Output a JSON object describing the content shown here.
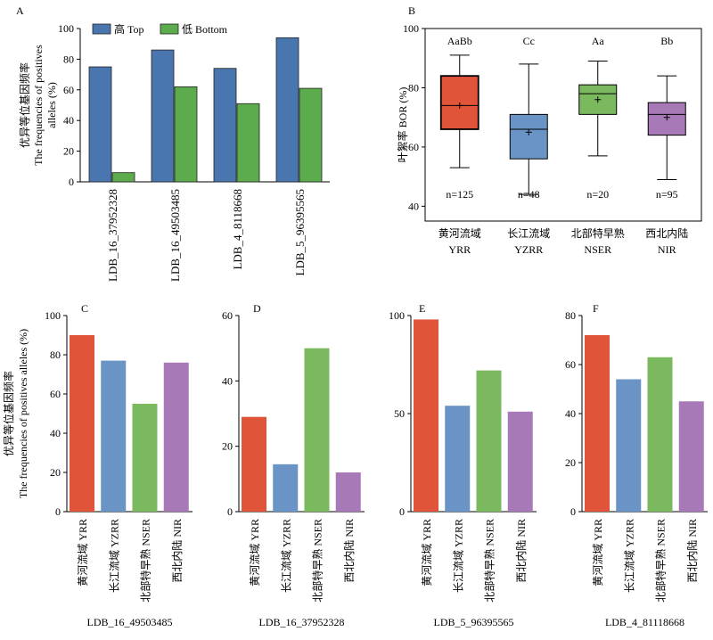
{
  "chart_data": [
    {
      "panel": "A",
      "type": "bar",
      "ylabel": [
        "优异等位基因频率",
        "The frequencies of positives",
        "alleles (%)"
      ],
      "categories": [
        "LDB_16_37952328",
        "LDB_16_49503485",
        "LDB_4_8118668",
        "LDB_5_96395565"
      ],
      "series": [
        {
          "name": "高 Top",
          "color": "#4a76b0",
          "values": [
            75,
            86,
            74,
            94
          ]
        },
        {
          "name": "低 Bottom",
          "color": "#5cab4c",
          "values": [
            6,
            62,
            51,
            61
          ]
        }
      ],
      "ylim": [
        0,
        100
      ],
      "yticks": [
        0,
        20,
        40,
        60,
        80,
        100
      ],
      "legend": "top"
    },
    {
      "panel": "B",
      "type": "box",
      "ylabel": "叶絮率 BOR (%)",
      "categories": [
        "黄河流域\nYRR",
        "长江流域\nYZRR",
        "北部特早熟\nNSER",
        "西北内陆\nNIR"
      ],
      "ylim": [
        35,
        100
      ],
      "yticks": [
        40,
        60,
        80,
        100
      ],
      "boxes": [
        {
          "min": 53,
          "q1": 66,
          "median": 74,
          "q3": 84,
          "max": 91,
          "mean": 74,
          "letters": "AaBb",
          "n": "n=125",
          "color": "#e0553a"
        },
        {
          "min": 44,
          "q1": 56,
          "median": 66,
          "q3": 71,
          "max": 88,
          "mean": 65,
          "letters": "Cc",
          "n": "n=48",
          "color": "#6a93c6"
        },
        {
          "min": 57,
          "q1": 71,
          "median": 78,
          "q3": 81,
          "max": 89,
          "mean": 76,
          "letters": "Aa",
          "n": "n=20",
          "color": "#7ab95e"
        },
        {
          "min": 49,
          "q1": 64,
          "median": 71,
          "q3": 75,
          "max": 84,
          "mean": 70,
          "letters": "Bb",
          "n": "n=95",
          "color": "#a779b7"
        }
      ]
    },
    {
      "panel": "C",
      "type": "bar",
      "xlabel": "LDB_16_49503485",
      "ylabel": [
        "优异等位基因频率",
        "The frequencies of positives alleles (%)"
      ],
      "categories": [
        "黄河流域 YRR",
        "长江流域 YZRR",
        "北部特早熟 NSER",
        "西北内陆 NIR"
      ],
      "values": [
        90,
        77,
        55,
        76
      ],
      "ylim": [
        0,
        100
      ],
      "yticks": [
        0,
        20,
        40,
        60,
        80,
        100
      ]
    },
    {
      "panel": "D",
      "type": "bar",
      "xlabel": "LDB_16_37952328",
      "categories": [
        "黄河流域 YRR",
        "长江流域 YZRR",
        "北部特早熟 NSER",
        "西北内陆 NIR"
      ],
      "values": [
        29,
        14.5,
        50,
        12
      ],
      "ylim": [
        0,
        60
      ],
      "yticks": [
        0,
        20,
        40,
        60
      ]
    },
    {
      "panel": "E",
      "type": "bar",
      "xlabel": "LDB_5_96395565",
      "categories": [
        "黄河流域 YRR",
        "长江流域 YZRR",
        "北部特早熟 NSER",
        "西北内陆 NIR"
      ],
      "values": [
        98,
        54,
        72,
        51
      ],
      "ylim": [
        0,
        100
      ],
      "yticks": [
        0,
        50,
        100
      ]
    },
    {
      "panel": "F",
      "type": "bar",
      "xlabel": "LDB_4_81118668",
      "categories": [
        "黄河流域 YRR",
        "长江流域 YZRR",
        "北部特早熟 NSER",
        "西北内陆 NIR"
      ],
      "values": [
        72,
        54,
        63,
        45
      ],
      "ylim": [
        0,
        80
      ],
      "yticks": [
        0,
        20,
        40,
        60,
        80
      ]
    }
  ],
  "colors": {
    "region": [
      "#e0553a",
      "#6a93c6",
      "#7ab95e",
      "#a779b7"
    ]
  }
}
